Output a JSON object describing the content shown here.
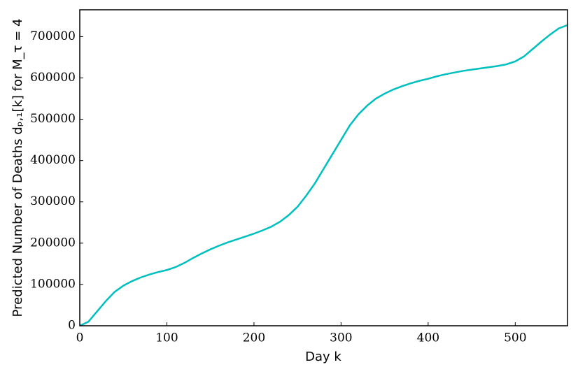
{
  "chart_data": {
    "type": "line",
    "x_label": "Day k",
    "y_label": "Predicted Number of Deaths dₚ,₁[k] for M_τ = 4",
    "x": [
      0,
      10,
      20,
      30,
      40,
      50,
      60,
      70,
      80,
      90,
      100,
      110,
      120,
      130,
      140,
      150,
      160,
      170,
      180,
      190,
      200,
      210,
      220,
      230,
      240,
      250,
      260,
      270,
      280,
      290,
      300,
      310,
      320,
      330,
      340,
      350,
      360,
      370,
      380,
      390,
      400,
      410,
      420,
      430,
      440,
      450,
      460,
      470,
      480,
      490,
      500,
      510,
      520,
      530,
      540,
      550,
      560
    ],
    "series": [
      {
        "color": "#00bfbf",
        "values": [
          0,
          10000,
          35000,
          60000,
          82000,
          97000,
          108000,
          117000,
          124000,
          130000,
          135000,
          142000,
          152000,
          164000,
          175000,
          185000,
          194000,
          202000,
          209000,
          216000,
          223000,
          231000,
          240000,
          252000,
          268000,
          288000,
          315000,
          345000,
          380000,
          415000,
          450000,
          485000,
          512000,
          533000,
          550000,
          562000,
          572000,
          580000,
          587000,
          593000,
          598000,
          604000,
          609000,
          613000,
          617000,
          620000,
          623000,
          626000,
          629000,
          633000,
          640000,
          652000,
          670000,
          688000,
          705000,
          720000,
          728000
        ]
      }
    ],
    "xlim": [
      0,
      560
    ],
    "xticks": [
      0,
      100,
      200,
      300,
      400,
      500
    ],
    "ylim": [
      0,
      765000
    ],
    "yticks": [
      0,
      100000,
      200000,
      300000,
      400000,
      500000,
      600000,
      700000
    ]
  }
}
